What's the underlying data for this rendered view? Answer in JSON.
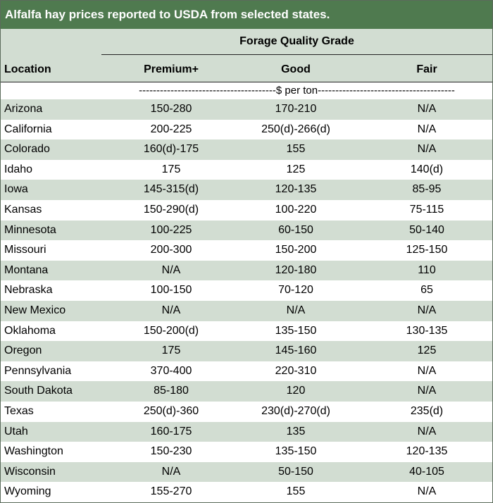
{
  "title": "Alfalfa hay prices reported to USDA from selected states.",
  "header": {
    "group_label": "Forage Quality Grade",
    "location_label": "Location",
    "columns": [
      "Premium+",
      "Good",
      "Fair"
    ]
  },
  "units_line": "---------------------------------------$ per ton---------------------------------------",
  "rows": [
    {
      "location": "Arizona",
      "premium": "150-280",
      "good": "170-210",
      "fair": "N/A"
    },
    {
      "location": "California",
      "premium": "200-225",
      "good": "250(d)-266(d)",
      "fair": "N/A"
    },
    {
      "location": "Colorado",
      "premium": "160(d)-175",
      "good": "155",
      "fair": "N/A"
    },
    {
      "location": "Idaho",
      "premium": "175",
      "good": "125",
      "fair": "140(d)"
    },
    {
      "location": "Iowa",
      "premium": "145-315(d)",
      "good": "120-135",
      "fair": "85-95"
    },
    {
      "location": "Kansas",
      "premium": "150-290(d)",
      "good": "100-220",
      "fair": "75-115"
    },
    {
      "location": "Minnesota",
      "premium": "100-225",
      "good": "60-150",
      "fair": "50-140"
    },
    {
      "location": "Missouri",
      "premium": "200-300",
      "good": "150-200",
      "fair": "125-150"
    },
    {
      "location": "Montana",
      "premium": "N/A",
      "good": "120-180",
      "fair": "110"
    },
    {
      "location": "Nebraska",
      "premium": "100-150",
      "good": "70-120",
      "fair": "65"
    },
    {
      "location": "New Mexico",
      "premium": "N/A",
      "good": "N/A",
      "fair": "N/A"
    },
    {
      "location": "Oklahoma",
      "premium": "150-200(d)",
      "good": "135-150",
      "fair": "130-135"
    },
    {
      "location": "Oregon",
      "premium": "175",
      "good": "145-160",
      "fair": "125"
    },
    {
      "location": "Pennsylvania",
      "premium": "370-400",
      "good": "220-310",
      "fair": "N/A"
    },
    {
      "location": "South Dakota",
      "premium": "85-180",
      "good": "120",
      "fair": "N/A"
    },
    {
      "location": "Texas",
      "premium": "250(d)-360",
      "good": "230(d)-270(d)",
      "fair": "235(d)"
    },
    {
      "location": "Utah",
      "premium": "160-175",
      "good": "135",
      "fair": "N/A"
    },
    {
      "location": "Washington",
      "premium": "150-230",
      "good": "135-150",
      "fair": "120-135"
    },
    {
      "location": "Wisconsin",
      "premium": "N/A",
      "good": "50-150",
      "fair": "40-105"
    },
    {
      "location": "Wyoming",
      "premium": "155-270",
      "good": "155",
      "fair": "N/A"
    }
  ]
}
